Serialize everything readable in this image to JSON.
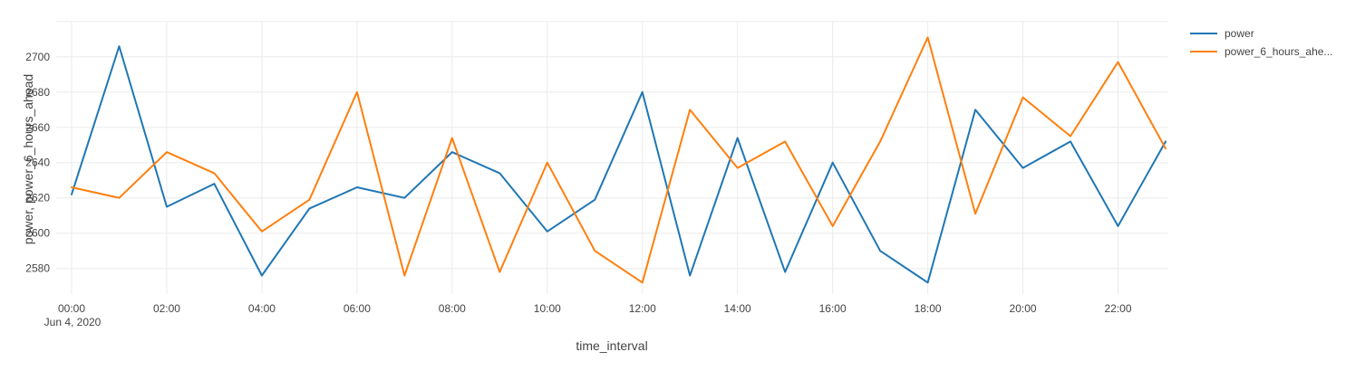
{
  "chart_data": {
    "type": "line",
    "title": "",
    "xlabel": "time_interval",
    "ylabel": "power, power_6_hours_ahead",
    "x_date_annotation": "Jun 4, 2020",
    "x": [
      "00:00",
      "01:00",
      "02:00",
      "03:00",
      "04:00",
      "05:00",
      "06:00",
      "07:00",
      "08:00",
      "09:00",
      "10:00",
      "11:00",
      "12:00",
      "13:00",
      "14:00",
      "15:00",
      "16:00",
      "17:00",
      "18:00",
      "19:00",
      "20:00",
      "21:00",
      "22:00",
      "23:00"
    ],
    "x_tick_labels": [
      "00:00",
      "02:00",
      "04:00",
      "06:00",
      "08:00",
      "10:00",
      "12:00",
      "14:00",
      "16:00",
      "18:00",
      "20:00",
      "22:00"
    ],
    "y_tick_labels": [
      "2580",
      "2600",
      "2620",
      "2640",
      "2660",
      "2680",
      "2700"
    ],
    "y_gridlines": [
      2580,
      2600,
      2620,
      2640,
      2660,
      2680,
      2700,
      2720
    ],
    "ylim": [
      2565.5,
      2724.5
    ],
    "grid": true,
    "legend_position": "top-right",
    "series": [
      {
        "name": "power",
        "legend_label": "power",
        "color": "#1f77b4",
        "values": [
          2622,
          2706,
          2615,
          2628,
          2576,
          2614,
          2626,
          2620,
          2646,
          2634,
          2601,
          2619,
          2680,
          2576,
          2654,
          2578,
          2640,
          2590,
          2572,
          2670,
          2637,
          2652,
          2604,
          2652
        ]
      },
      {
        "name": "power_6_hours_ahead",
        "legend_label": "power_6_hours_ahe...",
        "color": "#ff7f0e",
        "values": [
          2626,
          2620,
          2646,
          2634,
          2601,
          2619,
          2680,
          2576,
          2654,
          2578,
          2640,
          2590,
          2572,
          2670,
          2637,
          2652,
          2604,
          2652,
          2711,
          2611,
          2677,
          2655,
          2697,
          2648
        ]
      }
    ]
  },
  "colors": {
    "text": "#444444",
    "grid": "#ebebeb",
    "background": "#ffffff"
  }
}
